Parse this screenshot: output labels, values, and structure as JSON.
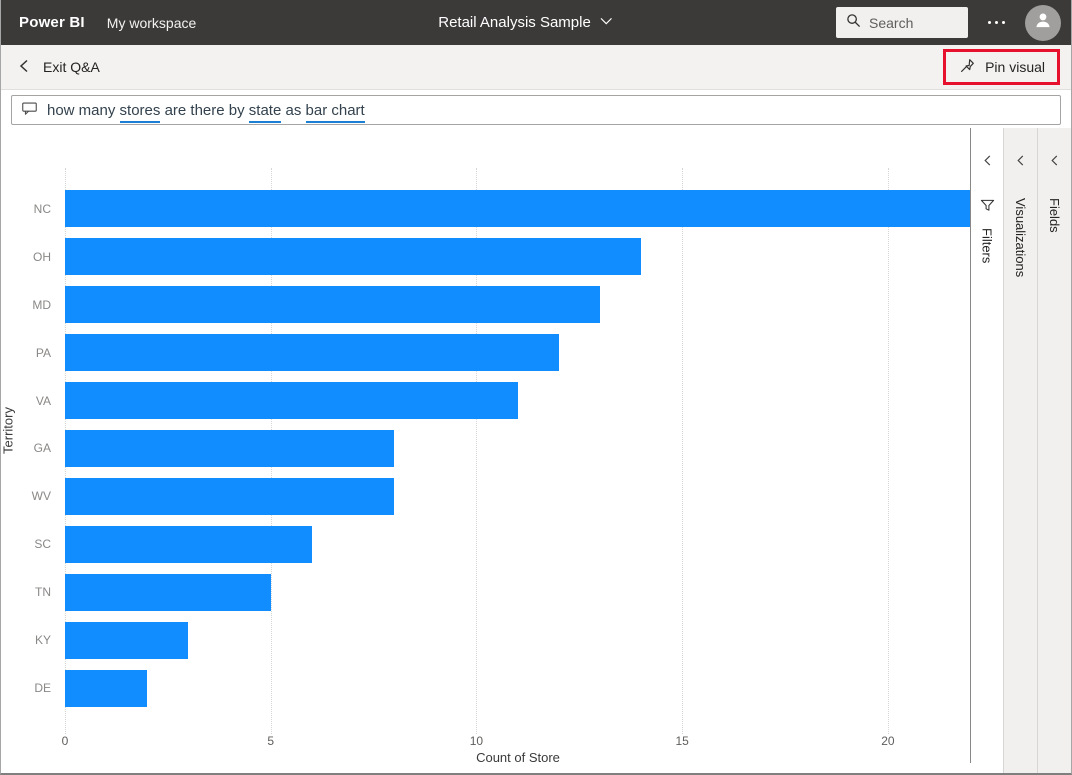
{
  "topbar": {
    "brand": "Power BI",
    "workspace": "My workspace",
    "dataset_title": "Retail Analysis Sample",
    "search_placeholder": "Search"
  },
  "toolbar": {
    "exit_label": "Exit Q&A",
    "pin_label": "Pin visual"
  },
  "qa_question": {
    "full_text": "how many stores are there by state as bar chart",
    "segments": [
      {
        "text": "how many ",
        "recognized": false
      },
      {
        "text": "stores",
        "recognized": true
      },
      {
        "text": " are there by ",
        "recognized": false
      },
      {
        "text": "state",
        "recognized": true
      },
      {
        "text": " as ",
        "recognized": false
      },
      {
        "text": "bar chart",
        "recognized": true
      }
    ]
  },
  "panels": {
    "filters": "Filters",
    "visualizations": "Visualizations",
    "fields": "Fields"
  },
  "chart_data": {
    "type": "bar",
    "orientation": "horizontal",
    "categories": [
      "NC",
      "OH",
      "MD",
      "PA",
      "VA",
      "GA",
      "WV",
      "SC",
      "TN",
      "KY",
      "DE"
    ],
    "values": [
      22,
      14,
      13,
      12,
      11,
      8,
      8,
      6,
      5,
      3,
      2
    ],
    "xlabel": "Count of Store",
    "ylabel": "Territory",
    "x_ticks": [
      0,
      5,
      10,
      15,
      20
    ],
    "xlim": [
      0,
      22.02
    ],
    "grid": "dotted-vertical",
    "legend": "none",
    "bar_color": "#118DFF"
  },
  "colors": {
    "bar": "#118DFF",
    "recognized_underline": "#1B7FD4",
    "annotation_red": "#E8112D",
    "topbar_bg": "#3B3A39"
  }
}
